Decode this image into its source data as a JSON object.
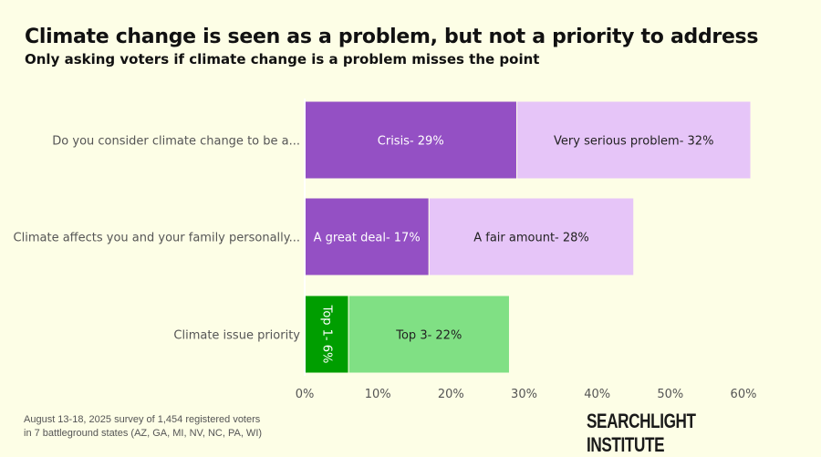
{
  "chart_data": {
    "type": "bar",
    "orientation": "horizontal",
    "stacked": true,
    "title": "Climate change is seen as a problem, but not a priority to address",
    "subtitle": "Only asking voters if climate change is a problem misses the point",
    "categories": [
      "Do you consider climate change to be a...",
      "Climate affects you and your family personally...",
      "Climate issue priority"
    ],
    "rows": [
      {
        "segments": [
          {
            "label": "Crisis- 29%",
            "value": 29,
            "color": "#9450c4",
            "text_color": "#ffffff"
          },
          {
            "label": "Very serious problem- 32%",
            "value": 32,
            "color": "#e6c5f8",
            "text_color": "#222222"
          }
        ]
      },
      {
        "segments": [
          {
            "label": "A great deal- 17%",
            "value": 17,
            "color": "#9450c4",
            "text_color": "#ffffff"
          },
          {
            "label": "A fair amount- 28%",
            "value": 28,
            "color": "#e6c5f8",
            "text_color": "#222222"
          }
        ]
      },
      {
        "segments": [
          {
            "label": "Top 1- 6%",
            "value": 6,
            "color": "#009e00",
            "text_color": "#ffffff",
            "rotated": true
          },
          {
            "label": "Top 3- 22%",
            "value": 22,
            "color": "#80e084",
            "text_color": "#222222"
          }
        ]
      }
    ],
    "xlim": [
      0,
      60
    ],
    "xticks": [
      "0%",
      "10%",
      "20%",
      "30%",
      "40%",
      "50%",
      "60%"
    ],
    "grid": false,
    "legend": "none"
  },
  "footnote": [
    "August 13-18, 2025 survey of 1,454 registered voters",
    "in 7 battleground states (AZ, GA, MI, NV, NC, PA, WI)"
  ],
  "logo": "SEARCHLIGHT INSTITUTE"
}
